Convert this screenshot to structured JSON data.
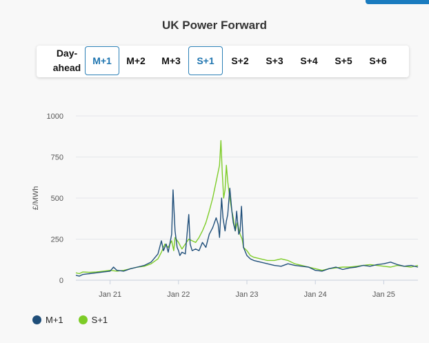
{
  "title": "UK Power Forward",
  "tabs": [
    {
      "label": "Day-ahead",
      "active": false
    },
    {
      "label": "M+1",
      "active": true
    },
    {
      "label": "M+2",
      "active": false
    },
    {
      "label": "M+3",
      "active": false
    },
    {
      "label": "S+1",
      "active": true
    },
    {
      "label": "S+2",
      "active": false
    },
    {
      "label": "S+3",
      "active": false
    },
    {
      "label": "S+4",
      "active": false
    },
    {
      "label": "S+5",
      "active": false
    },
    {
      "label": "S+6",
      "active": false
    }
  ],
  "colors": {
    "accent": "#1a7bbf",
    "m1": "#1f4e79",
    "s1": "#7dcc27"
  },
  "chart_data": {
    "type": "line",
    "title": "UK Power Forward",
    "xlabel": "",
    "ylabel": "£/MWh",
    "ylim": [
      0,
      1000
    ],
    "yticks": [
      0,
      250,
      500,
      750,
      1000
    ],
    "xlim": [
      2020.5,
      2025.5
    ],
    "xticks": [
      {
        "value": 2021,
        "label": "Jan 21"
      },
      {
        "value": 2022,
        "label": "Jan 22"
      },
      {
        "value": 2023,
        "label": "Jan 23"
      },
      {
        "value": 2024,
        "label": "Jan 24"
      },
      {
        "value": 2025,
        "label": "Jan 25"
      }
    ],
    "grid": true,
    "legend_position": "bottom-left",
    "series": [
      {
        "name": "M+1",
        "color": "#1f4e79",
        "x": [
          2020.5,
          2020.55,
          2020.6,
          2020.7,
          2020.8,
          2020.9,
          2021.0,
          2021.05,
          2021.1,
          2021.2,
          2021.3,
          2021.4,
          2021.5,
          2021.6,
          2021.7,
          2021.75,
          2021.78,
          2021.82,
          2021.85,
          2021.9,
          2021.92,
          2021.95,
          2021.98,
          2022.0,
          2022.02,
          2022.05,
          2022.1,
          2022.15,
          2022.17,
          2022.2,
          2022.25,
          2022.3,
          2022.35,
          2022.4,
          2022.45,
          2022.5,
          2022.55,
          2022.58,
          2022.6,
          2022.63,
          2022.65,
          2022.68,
          2022.7,
          2022.72,
          2022.75,
          2022.78,
          2022.8,
          2022.83,
          2022.85,
          2022.88,
          2022.9,
          2022.92,
          2022.95,
          2023.0,
          2023.05,
          2023.1,
          2023.2,
          2023.3,
          2023.4,
          2023.5,
          2023.6,
          2023.7,
          2023.8,
          2023.9,
          2024.0,
          2024.1,
          2024.2,
          2024.3,
          2024.4,
          2024.5,
          2024.6,
          2024.7,
          2024.8,
          2024.9,
          2025.0,
          2025.1,
          2025.2,
          2025.3,
          2025.4,
          2025.5
        ],
        "values": [
          30,
          25,
          35,
          40,
          45,
          50,
          55,
          80,
          60,
          55,
          70,
          80,
          90,
          110,
          160,
          240,
          180,
          220,
          170,
          280,
          550,
          300,
          200,
          180,
          150,
          170,
          160,
          400,
          220,
          180,
          190,
          180,
          230,
          200,
          280,
          320,
          380,
          340,
          260,
          500,
          380,
          300,
          360,
          400,
          560,
          420,
          350,
          300,
          420,
          280,
          300,
          450,
          200,
          150,
          130,
          120,
          110,
          100,
          90,
          85,
          100,
          90,
          85,
          80,
          60,
          55,
          70,
          80,
          65,
          75,
          80,
          90,
          85,
          95,
          100,
          110,
          95,
          85,
          90,
          80
        ]
      },
      {
        "name": "S+1",
        "color": "#7dcc27",
        "x": [
          2020.5,
          2020.55,
          2020.6,
          2020.7,
          2020.8,
          2020.9,
          2021.0,
          2021.1,
          2021.2,
          2021.3,
          2021.4,
          2021.5,
          2021.6,
          2021.7,
          2021.75,
          2021.8,
          2021.85,
          2021.9,
          2021.93,
          2021.95,
          2022.0,
          2022.05,
          2022.1,
          2022.15,
          2022.2,
          2022.25,
          2022.3,
          2022.35,
          2022.4,
          2022.45,
          2022.5,
          2022.55,
          2022.6,
          2022.62,
          2022.64,
          2022.66,
          2022.68,
          2022.7,
          2022.72,
          2022.75,
          2022.78,
          2022.8,
          2022.83,
          2022.86,
          2022.9,
          2022.93,
          2022.95,
          2023.0,
          2023.05,
          2023.1,
          2023.2,
          2023.3,
          2023.4,
          2023.5,
          2023.6,
          2023.7,
          2023.8,
          2023.9,
          2024.0,
          2024.1,
          2024.2,
          2024.3,
          2024.4,
          2024.5,
          2024.6,
          2024.7,
          2024.8,
          2024.9,
          2025.0,
          2025.1,
          2025.2,
          2025.3,
          2025.4,
          2025.5
        ],
        "values": [
          45,
          40,
          50,
          48,
          50,
          55,
          60,
          55,
          60,
          70,
          80,
          85,
          100,
          130,
          170,
          220,
          200,
          240,
          180,
          260,
          230,
          190,
          220,
          250,
          240,
          230,
          260,
          300,
          350,
          420,
          500,
          600,
          700,
          850,
          650,
          500,
          550,
          700,
          600,
          500,
          420,
          380,
          300,
          350,
          280,
          250,
          200,
          180,
          150,
          140,
          130,
          120,
          120,
          130,
          120,
          100,
          90,
          80,
          70,
          60,
          70,
          75,
          80,
          80,
          85,
          90,
          95,
          90,
          85,
          80,
          90,
          85,
          80,
          90
        ]
      }
    ]
  }
}
